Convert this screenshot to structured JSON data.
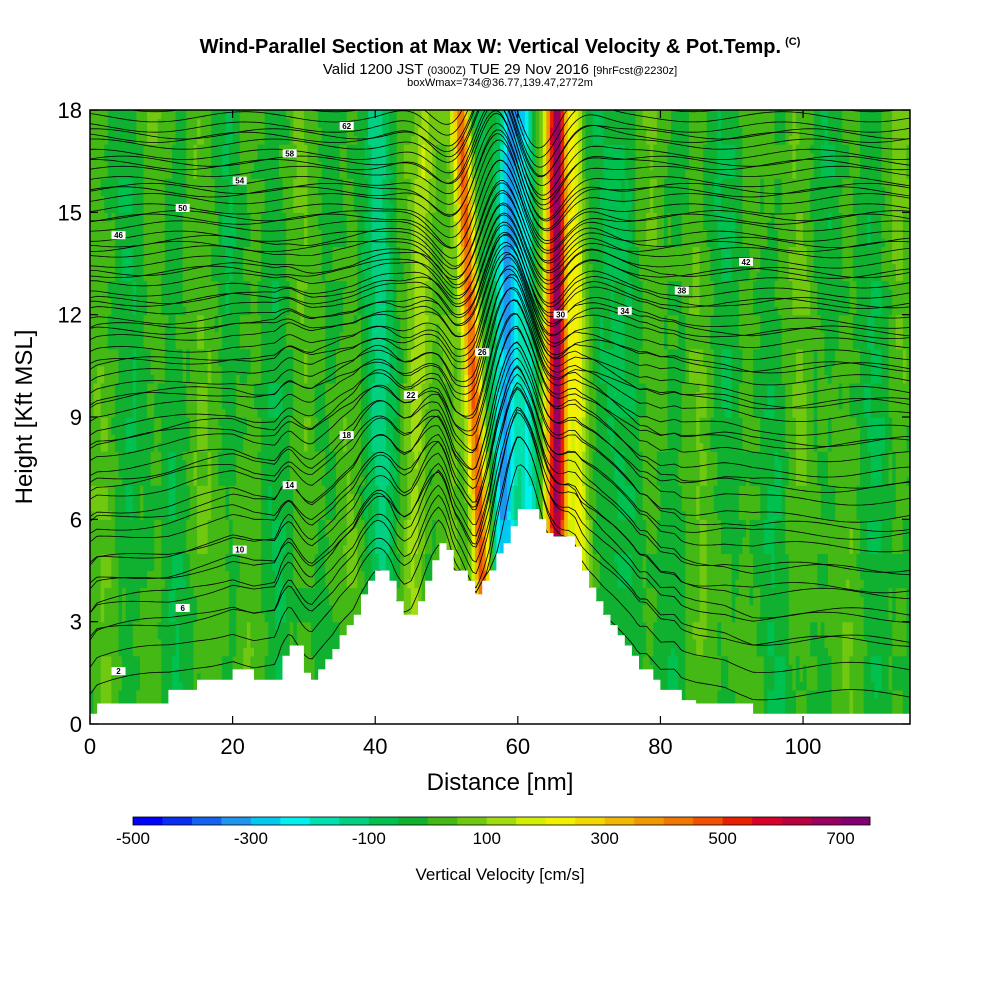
{
  "chart_data": {
    "type": "heatmap",
    "title": "Wind-Parallel Section at Max W: Vertical Velocity & Pot.Temp.",
    "title_mark": "(C)",
    "subtitle_main": "Valid 1200 JST",
    "subtitle_utc": "(0300Z)",
    "subtitle_date": "TUE 29 Nov 2016",
    "subtitle_fcst": "[9hrFcst@2230z]",
    "subtitle2": "boxWmax=734@36.77,139.47,2772m",
    "xlabel": "Distance [nm]",
    "ylabel": "Height [Kft MSL]",
    "xlim": [
      0,
      115
    ],
    "ylim": [
      0,
      18
    ],
    "x_ticks": [
      0,
      20,
      40,
      60,
      80,
      100
    ],
    "y_ticks": [
      0,
      3,
      6,
      9,
      12,
      15,
      18
    ],
    "colorbar": {
      "label": "Vertical Velocity [cm/s]",
      "range": [
        -500,
        750
      ],
      "step": 50,
      "tick_values": [
        -500,
        -300,
        -100,
        100,
        300,
        500,
        700
      ],
      "tick_labels": [
        "-500",
        "-300",
        "-100",
        "100",
        "300",
        "500",
        "700"
      ],
      "colors": [
        "#0000ff",
        "#0a2ef0",
        "#1463f0",
        "#1e96f0",
        "#00c8f0",
        "#00f0f0",
        "#00e0b0",
        "#00d080",
        "#00c050",
        "#10b030",
        "#44b814",
        "#70c810",
        "#a0dc10",
        "#d4f000",
        "#f0f000",
        "#f0d800",
        "#f0b800",
        "#f09800",
        "#f07800",
        "#f05000",
        "#e82000",
        "#d80028",
        "#b80040",
        "#980060",
        "#800070"
      ]
    },
    "velocity_bands": [
      {
        "x_bottom": 45,
        "x_top": 47,
        "halfwidth": 1.5,
        "w": 140
      },
      {
        "x_bottom": 56,
        "x_top": 52,
        "halfwidth": 1.2,
        "w": 480
      },
      {
        "x_bottom": 57.5,
        "x_top": 59,
        "halfwidth": 1.6,
        "w": -320
      },
      {
        "x_bottom": 65.5,
        "x_top": 65.5,
        "halfwidth": 1.4,
        "w": 650
      },
      {
        "x_bottom": 69,
        "x_top": 68,
        "halfwidth": 1.2,
        "w": 220
      },
      {
        "x_bottom": 62,
        "x_top": 61,
        "halfwidth": 1.2,
        "w": -150
      },
      {
        "x_bottom": 41,
        "x_top": 41,
        "halfwidth": 2.2,
        "w": -80
      },
      {
        "x_bottom": 72,
        "x_top": 72,
        "halfwidth": 2.0,
        "w": -60
      }
    ],
    "terrain": {
      "x": [
        0,
        1,
        11,
        15,
        20,
        23,
        26,
        27,
        28,
        30,
        31,
        32,
        33,
        34,
        35,
        36,
        37,
        38,
        39,
        40,
        41,
        42,
        43,
        44,
        45,
        46,
        47,
        48,
        49,
        50,
        51,
        52,
        53,
        54,
        55,
        56,
        57,
        58,
        59,
        60,
        61,
        62,
        63,
        64,
        65,
        66,
        67,
        68,
        69,
        70,
        71,
        72,
        73,
        74,
        75,
        76,
        77,
        78,
        79,
        80,
        81,
        82,
        83,
        85,
        89,
        93,
        115
      ],
      "h": [
        0.3,
        0.6,
        1.0,
        1.3,
        1.6,
        1.3,
        1.3,
        2.0,
        2.3,
        1.5,
        1.3,
        1.6,
        1.9,
        2.2,
        2.6,
        2.9,
        3.2,
        3.8,
        4.2,
        4.5,
        4.5,
        4.2,
        3.6,
        3.2,
        3.2,
        3.6,
        4.2,
        4.8,
        5.3,
        5.1,
        4.5,
        4.5,
        4.2,
        3.8,
        4.2,
        4.5,
        5.0,
        5.3,
        5.8,
        6.3,
        6.3,
        6.3,
        6.0,
        5.6,
        5.5,
        5.5,
        5.5,
        5.2,
        4.5,
        4.0,
        3.6,
        3.2,
        2.9,
        2.6,
        2.3,
        2.0,
        1.6,
        1.6,
        1.3,
        1.0,
        1.0,
        1.0,
        0.7,
        0.6,
        0.6,
        0.3,
        0.3
      ]
    },
    "theta_contours": [
      {
        "label": "2",
        "h0": 0.6,
        "spacing": 0.8
      },
      {
        "label": "6",
        "h0": 2.2,
        "spacing": 0.7
      },
      {
        "label": "10",
        "h0": 3.8,
        "spacing": 0.6
      },
      {
        "label": "14",
        "h0": 5.4,
        "spacing": 0.5
      },
      {
        "label": "18",
        "h0": 6.8,
        "spacing": 0.45
      },
      {
        "label": "22",
        "h0": 8.1,
        "spacing": 0.4
      },
      {
        "label": "26",
        "h0": 9.3,
        "spacing": 0.35
      },
      {
        "label": "30",
        "h0": 10.4,
        "spacing": 0.35
      },
      {
        "label": "34",
        "h0": 11.4,
        "spacing": 0.3
      },
      {
        "label": "38",
        "h0": 12.3,
        "spacing": 0.3
      },
      {
        "label": "42",
        "h0": 13.2,
        "spacing": 0.3
      },
      {
        "label": "46",
        "h0": 14.0,
        "spacing": 0.3
      },
      {
        "label": "50",
        "h0": 14.8,
        "spacing": 0.3
      },
      {
        "label": "54",
        "h0": 15.6,
        "spacing": 0.3
      },
      {
        "label": "58",
        "h0": 16.4,
        "spacing": 0.3
      },
      {
        "label": "62",
        "h0": 17.2,
        "spacing": 0.3
      }
    ]
  }
}
